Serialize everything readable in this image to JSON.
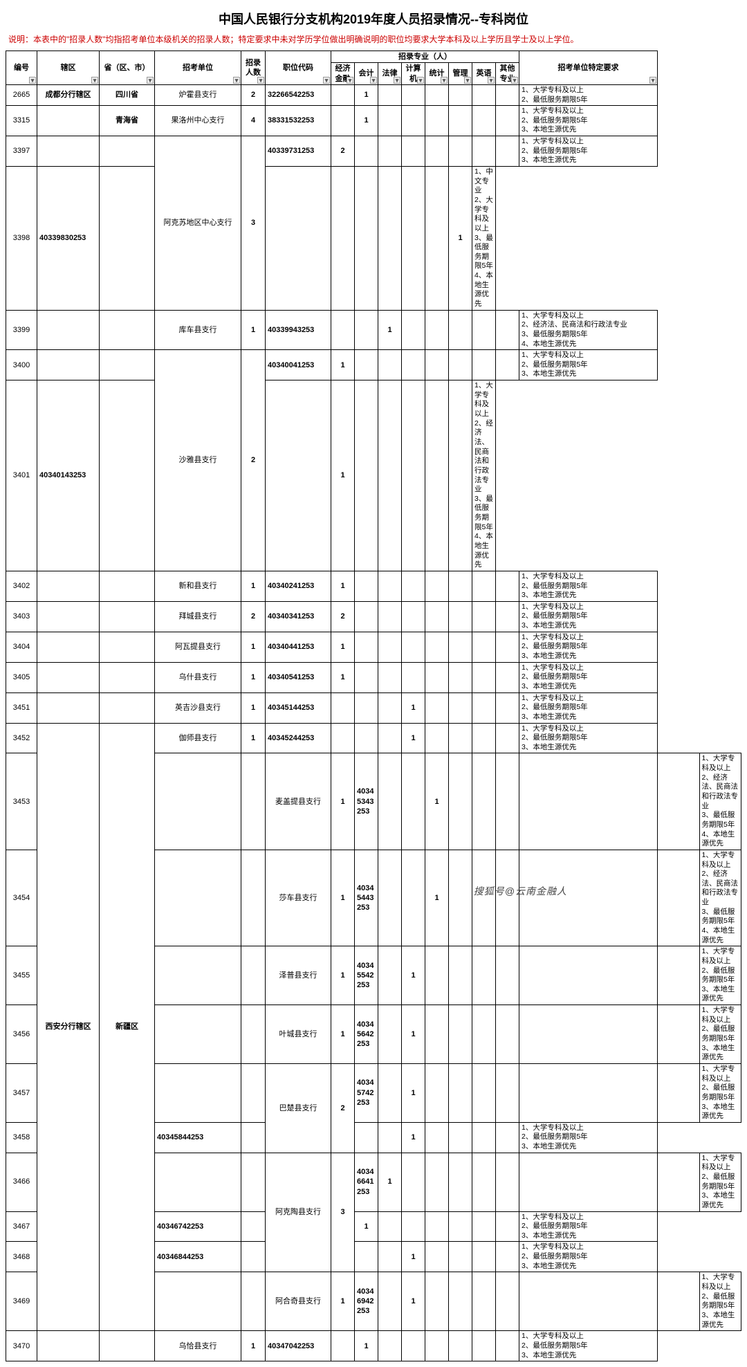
{
  "title": "中国人民银行分支机构2019年度人员招录情况--专科岗位",
  "note": "说明：本表中的\"招录人数\"均指招考单位本级机关的招录人数；特定要求中未对学历学位做出明确说明的职位均要求大学本科及以上学历且学士及以上学位。",
  "credit": "搜狐号@云南金融人",
  "columns": {
    "c_id": "编号",
    "c_area": "辖区",
    "c_prov": "省（区、市）",
    "c_unit": "招考单位",
    "c_recruit": "招录人数",
    "c_code": "职位代码",
    "c_major_group": "招录专业（人）",
    "c_econ": "经济金融",
    "c_acct": "会计",
    "c_law": "法律",
    "c_cs": "计算机",
    "c_stat": "统计",
    "c_mgmt": "管理",
    "c_eng": "英语",
    "c_other": "其他专业",
    "c_req": "招考单位特定要求"
  },
  "col_widths": {
    "c_id": 45,
    "c_area": 90,
    "c_prov": 80,
    "c_unit": 125,
    "c_recruit": 35,
    "c_code": 95,
    "c_econ": 34,
    "c_acct": 34,
    "c_law": 34,
    "c_cs": 34,
    "c_stat": 34,
    "c_mgmt": 34,
    "c_eng": 34,
    "c_other": 34,
    "c_req": 200
  },
  "req_lists": {
    "r2": "1、大学专科及以上\n2、最低服务期限5年",
    "r3": "1、大学专科及以上\n2、最低服务期限5年\n3、本地生源优先",
    "r4cn": "1、中文专业\n2、大学专科及以上\n3、最低服务期限5年\n4、本地生源优先",
    "r4law": "1、大学专科及以上\n2、经济法、民商法和行政法专业\n3、最低服务期限5年\n4、本地生源优先"
  },
  "rows": [
    {
      "id": "2665",
      "area": "成都分行辖区",
      "prov": "四川省",
      "unit": "炉霍县支行",
      "unit_rs": 1,
      "recruit": "2",
      "code": "32266542253",
      "acct": "1",
      "req": "r2"
    },
    {
      "id": "3315",
      "area": "",
      "prov": "青海省",
      "unit": "果洛州中心支行",
      "unit_rs": 1,
      "recruit": "4",
      "code": "38331532253",
      "acct": "1",
      "req": "r3"
    },
    {
      "id": "3397",
      "area": "",
      "prov": "",
      "unit": "阿克苏地区中心支行",
      "unit_rs": 2,
      "recruit": "3",
      "recruit_rs": 2,
      "code": "40339731253",
      "econ": "2",
      "req": "r3"
    },
    {
      "id": "3398",
      "code": "40339830253",
      "other": "1",
      "req": "r4cn"
    },
    {
      "id": "3399",
      "area": "",
      "prov": "",
      "unit": "库车县支行",
      "unit_rs": 1,
      "recruit": "1",
      "code": "40339943253",
      "law": "1",
      "req": "r4law"
    },
    {
      "id": "3400",
      "area": "",
      "prov": "",
      "unit": "沙雅县支行",
      "unit_rs": 2,
      "recruit": "2",
      "recruit_rs": 2,
      "code": "40340041253",
      "econ": "1",
      "req": "r3"
    },
    {
      "id": "3401",
      "code": "40340143253",
      "law": "1",
      "req": "r4law"
    },
    {
      "id": "3402",
      "area": "",
      "prov": "",
      "unit": "新和县支行",
      "unit_rs": 1,
      "recruit": "1",
      "code": "40340241253",
      "econ": "1",
      "req": "r3"
    },
    {
      "id": "3403",
      "area": "",
      "prov": "",
      "unit": "拜城县支行",
      "unit_rs": 1,
      "recruit": "2",
      "code": "40340341253",
      "econ": "2",
      "req": "r3"
    },
    {
      "id": "3404",
      "area": "",
      "prov": "",
      "unit": "阿瓦提县支行",
      "unit_rs": 1,
      "recruit": "1",
      "code": "40340441253",
      "econ": "1",
      "req": "r3"
    },
    {
      "id": "3405",
      "area": "",
      "prov": "",
      "unit": "乌什县支行",
      "unit_rs": 1,
      "recruit": "1",
      "code": "40340541253",
      "econ": "1",
      "req": "r3"
    },
    {
      "id": "3451",
      "area": "",
      "prov": "",
      "unit": "英吉沙县支行",
      "unit_rs": 1,
      "recruit": "1",
      "code": "40345144253",
      "cs": "1",
      "req": "r3"
    },
    {
      "id": "3452",
      "area": "西安分行辖区",
      "area_rs": 11,
      "prov": "新疆区",
      "prov_rs": 11,
      "unit": "伽师县支行",
      "unit_rs": 1,
      "recruit": "1",
      "code": "40345244253",
      "cs": "1",
      "req": "r3"
    },
    {
      "id": "3453",
      "area": "",
      "prov": "",
      "unit": "麦盖提县支行",
      "unit_rs": 1,
      "recruit": "1",
      "code": "40345343253",
      "law": "1",
      "req": "r4law"
    },
    {
      "id": "3454",
      "area": "",
      "prov": "",
      "unit": "莎车县支行",
      "unit_rs": 1,
      "recruit": "1",
      "code": "40345443253",
      "law": "1",
      "req": "r4law"
    },
    {
      "id": "3455",
      "area": "",
      "prov": "",
      "unit": "泽普县支行",
      "unit_rs": 1,
      "recruit": "1",
      "code": "40345542253",
      "acct": "1",
      "req": "r3"
    },
    {
      "id": "3456",
      "area": "",
      "prov": "",
      "unit": "叶城县支行",
      "unit_rs": 1,
      "recruit": "1",
      "code": "40345642253",
      "acct": "1",
      "req": "r3"
    },
    {
      "id": "3457",
      "area": "",
      "prov": "",
      "unit": "巴楚县支行",
      "unit_rs": 2,
      "recruit": "2",
      "recruit_rs": 2,
      "code": "40345742253",
      "acct": "1",
      "req": "r3"
    },
    {
      "id": "3458",
      "code": "40345844253",
      "cs": "1",
      "req": "r3"
    },
    {
      "id": "3466",
      "area": "",
      "prov": "",
      "unit": "阿克陶县支行",
      "unit_rs": 3,
      "recruit": "3",
      "recruit_rs": 3,
      "code": "40346641253",
      "econ": "1",
      "req": "r3"
    },
    {
      "id": "3467",
      "code": "40346742253",
      "acct": "1",
      "req": "r3"
    },
    {
      "id": "3468",
      "code": "40346844253",
      "cs": "1",
      "req": "r3"
    },
    {
      "id": "3469",
      "area": "",
      "prov": "",
      "unit": "阿合奇县支行",
      "unit_rs": 1,
      "recruit": "1",
      "code": "40346942253",
      "acct": "1",
      "req": "r3"
    },
    {
      "id": "3470",
      "area": "",
      "prov": "",
      "unit": "乌恰县支行",
      "unit_rs": 1,
      "recruit": "1",
      "code": "40347042253",
      "acct": "1",
      "req": "r3"
    }
  ]
}
